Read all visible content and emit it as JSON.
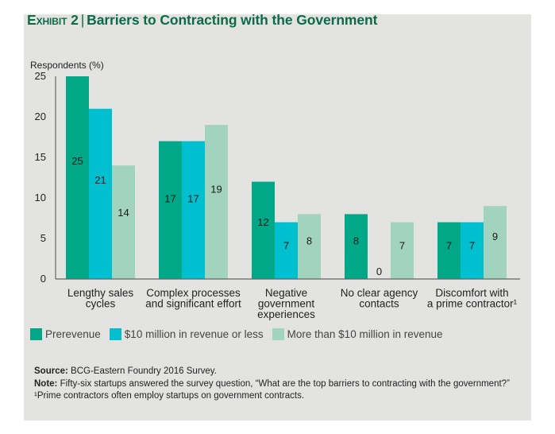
{
  "exhibit": {
    "label": "Exhibit 2",
    "separator": "|",
    "title": "Barriers to Contracting with the Government"
  },
  "colors": {
    "panel_bg": "#e3e3e2",
    "title": "#0a6a49",
    "axis": "#666666"
  },
  "chart_data": {
    "type": "bar",
    "title": "Barriers to Contracting with the Government",
    "xlabel": "",
    "ylabel": "Respondents (%)",
    "ylim": [
      0,
      25
    ],
    "yticks": [
      0,
      5,
      10,
      15,
      20,
      25
    ],
    "grid": false,
    "legend_position": "bottom-left",
    "categories": [
      [
        "Lengthy sales",
        "cycles"
      ],
      [
        "Complex processes",
        "and significant effort"
      ],
      [
        "Negative",
        "government",
        "experiences"
      ],
      [
        "No clear agency",
        "contacts"
      ],
      [
        "Discomfort with",
        "a prime contractor¹"
      ]
    ],
    "series": [
      {
        "name": "Prerevenue",
        "color": "#00a887",
        "values": [
          25,
          17,
          12,
          8,
          7
        ]
      },
      {
        "name": "$10 million in revenue or less",
        "color": "#00bfcf",
        "values": [
          21,
          17,
          7,
          0,
          7
        ]
      },
      {
        "name": "More than $10 million in revenue",
        "color": "#a2d3bf",
        "values": [
          14,
          19,
          8,
          7,
          9
        ]
      }
    ]
  },
  "notes": {
    "source_label": "Source:",
    "source_text": " BCG-Eastern Foundry 2016 Survey.",
    "note_label": "Note:",
    "note_text": " Fifty-six startups answered the survey question, “What are the top barriers to contracting with the government?”",
    "footnote": "¹Prime contractors often employ startups on government contracts."
  }
}
